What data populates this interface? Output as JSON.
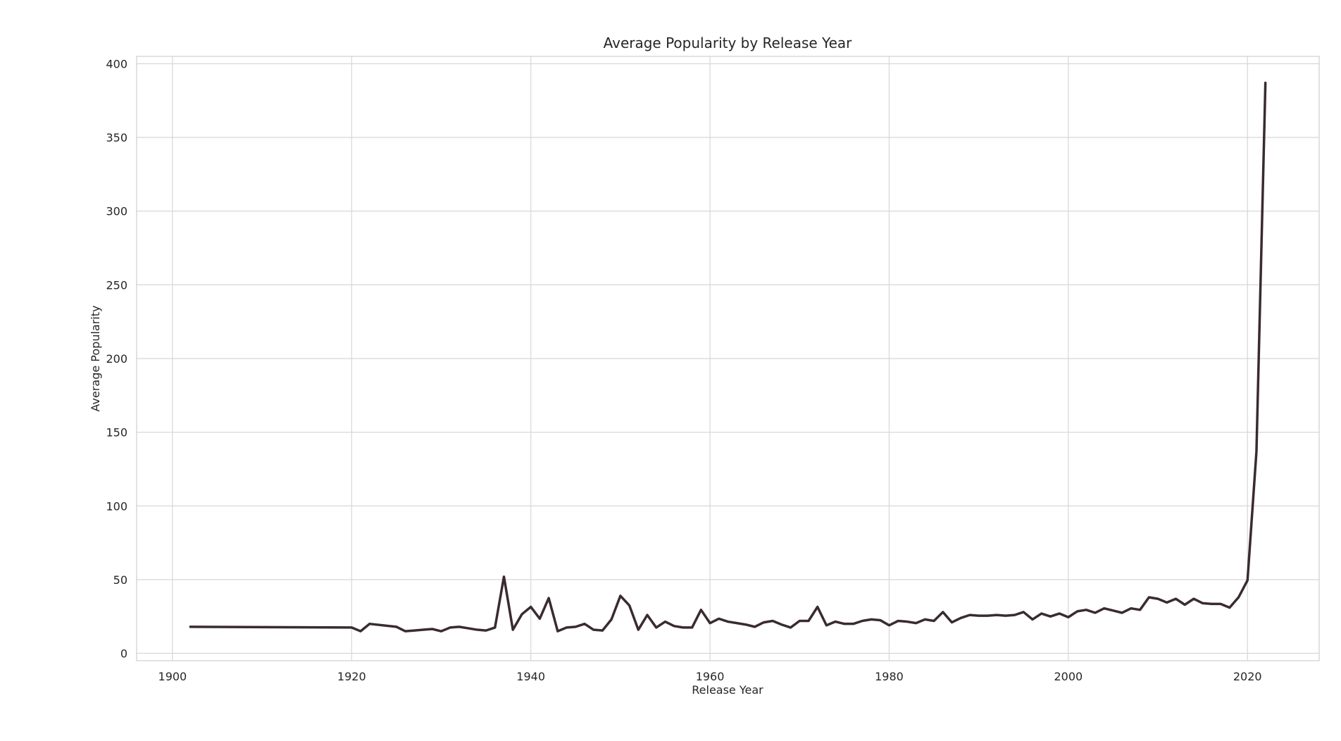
{
  "chart_data": {
    "type": "line",
    "title": "Average Popularity by Release Year",
    "xlabel": "Release Year",
    "ylabel": "Average Popularity",
    "xlim": [
      1896,
      2028
    ],
    "ylim": [
      -5,
      405
    ],
    "x_ticks": [
      1900,
      1920,
      1940,
      1960,
      1980,
      2000,
      2020
    ],
    "y_ticks": [
      0,
      50,
      100,
      150,
      200,
      250,
      300,
      350,
      400
    ],
    "grid": true,
    "legend": "none",
    "colors": {
      "line": "#3a2b2e",
      "grid": "#d7d7d7",
      "frame": "#cfcfcf",
      "text": "#262626",
      "background": "#ffffff"
    },
    "series": [
      {
        "x": [
          1902,
          1920,
          1921,
          1922,
          1925,
          1926,
          1927,
          1928,
          1929,
          1930,
          1931,
          1932,
          1933,
          1934,
          1935,
          1936,
          1937,
          1938,
          1939,
          1940,
          1941,
          1942,
          1943,
          1944,
          1945,
          1946,
          1947,
          1948,
          1949,
          1950,
          1951,
          1952,
          1953,
          1954,
          1955,
          1956,
          1957,
          1958,
          1959,
          1960,
          1961,
          1962,
          1963,
          1964,
          1965,
          1966,
          1967,
          1968,
          1969,
          1970,
          1971,
          1972,
          1973,
          1974,
          1975,
          1976,
          1977,
          1978,
          1979,
          1980,
          1981,
          1982,
          1983,
          1984,
          1985,
          1986,
          1987,
          1988,
          1989,
          1990,
          1991,
          1992,
          1993,
          1994,
          1995,
          1996,
          1997,
          1998,
          1999,
          2000,
          2001,
          2002,
          2003,
          2004,
          2005,
          2006,
          2007,
          2008,
          2009,
          2010,
          2011,
          2012,
          2013,
          2014,
          2015,
          2016,
          2017,
          2018,
          2019,
          2020,
          2021,
          2022
        ],
        "values": [
          18,
          17.5,
          15,
          20,
          18,
          15,
          15.5,
          16,
          16.5,
          15,
          17.5,
          18,
          17,
          16,
          15.5,
          17.5,
          52,
          16,
          26.5,
          31.5,
          23.5,
          37.5,
          15,
          17.5,
          18,
          20,
          16,
          15.5,
          23,
          39,
          32.5,
          16,
          26,
          17.5,
          21.5,
          18.5,
          17.5,
          17.5,
          29.5,
          20.5,
          23.5,
          21.5,
          20.5,
          19.5,
          18,
          21,
          22,
          19.5,
          17.5,
          22,
          22,
          31.5,
          19,
          21.5,
          20,
          20,
          22,
          23,
          22.5,
          19,
          22,
          21.5,
          20.5,
          23,
          22,
          28,
          21,
          24,
          26,
          25.5,
          25.5,
          26,
          25.5,
          26,
          28,
          23,
          27,
          25,
          27,
          24.5,
          28.5,
          29.5,
          27.5,
          30.5,
          29,
          27.5,
          30.5,
          29.5,
          38,
          37,
          34.5,
          37,
          33,
          37,
          34,
          33.5,
          33.5,
          31,
          38,
          49.5,
          137,
          387
        ]
      }
    ]
  }
}
